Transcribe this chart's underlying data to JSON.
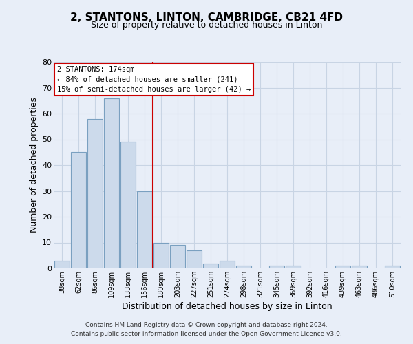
{
  "title": "2, STANTONS, LINTON, CAMBRIDGE, CB21 4FD",
  "subtitle": "Size of property relative to detached houses in Linton",
  "xlabel": "Distribution of detached houses by size in Linton",
  "ylabel": "Number of detached properties",
  "bar_labels": [
    "38sqm",
    "62sqm",
    "86sqm",
    "109sqm",
    "133sqm",
    "156sqm",
    "180sqm",
    "203sqm",
    "227sqm",
    "251sqm",
    "274sqm",
    "298sqm",
    "321sqm",
    "345sqm",
    "369sqm",
    "392sqm",
    "416sqm",
    "439sqm",
    "463sqm",
    "486sqm",
    "510sqm"
  ],
  "bar_values": [
    3,
    45,
    58,
    66,
    49,
    30,
    10,
    9,
    7,
    2,
    3,
    1,
    0,
    1,
    1,
    0,
    0,
    1,
    1,
    0,
    1
  ],
  "bar_color": "#ccdaeb",
  "bar_edge_color": "#7aa0c0",
  "vline_color": "#cc0000",
  "annotation_title": "2 STANTONS: 174sqm",
  "annotation_line1": "← 84% of detached houses are smaller (241)",
  "annotation_line2": "15% of semi-detached houses are larger (42) →",
  "annotation_box_color": "white",
  "annotation_box_edge_color": "#cc0000",
  "ylim": [
    0,
    80
  ],
  "yticks": [
    0,
    10,
    20,
    30,
    40,
    50,
    60,
    70,
    80
  ],
  "grid_color": "#c8d4e4",
  "background_color": "#e8eef8",
  "plot_bg_color": "#e8eef8",
  "footer_line1": "Contains HM Land Registry data © Crown copyright and database right 2024.",
  "footer_line2": "Contains public sector information licensed under the Open Government Licence v3.0."
}
